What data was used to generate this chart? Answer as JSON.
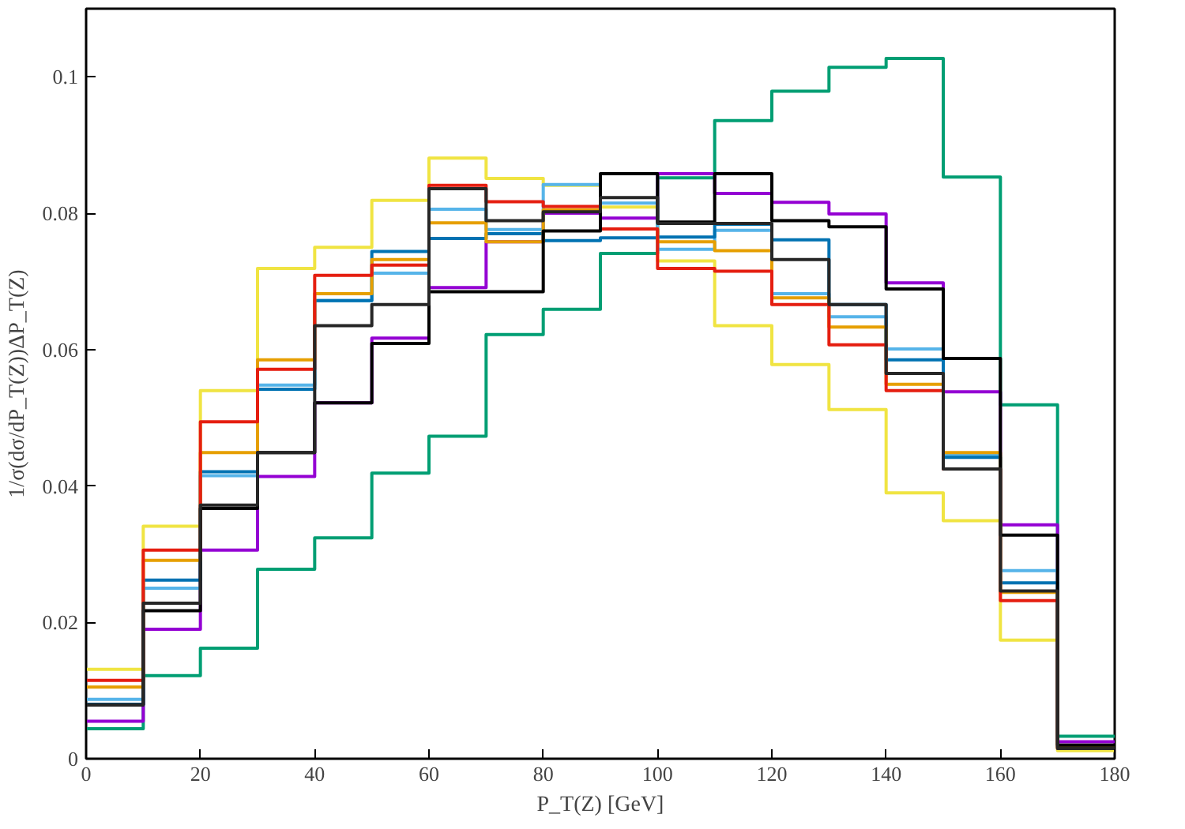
{
  "chart_data": {
    "type": "histogram",
    "xlabel": "P_T(Z) [GeV]",
    "ylabel": "1/σ(dσ/dP_T(Z))ΔP_T(Z)",
    "bins": [
      0,
      10,
      20,
      30,
      40,
      50,
      60,
      70,
      80,
      90,
      100,
      110,
      120,
      130,
      140,
      150,
      160,
      170,
      180
    ],
    "xlim": [
      0,
      180
    ],
    "xticks": [
      0,
      20,
      40,
      60,
      80,
      100,
      120,
      140,
      160,
      180
    ],
    "ylim": [
      0,
      0.11
    ],
    "yticks": [
      0,
      0.02,
      0.04,
      0.06,
      0.08,
      0.1
    ],
    "grid": false,
    "line_style": "solid",
    "series": [
      {
        "color": "#f0e442",
        "values": [
          0.0131,
          0.0341,
          0.054,
          0.0719,
          0.075,
          0.0819,
          0.0881,
          0.0851,
          0.0841,
          0.0809,
          0.073,
          0.0635,
          0.0578,
          0.0512,
          0.039,
          0.0349,
          0.0174,
          0.0012
        ]
      },
      {
        "color": "#009e73",
        "values": [
          0.0044,
          0.0122,
          0.0162,
          0.0278,
          0.0324,
          0.0419,
          0.0473,
          0.0622,
          0.0659,
          0.0741,
          0.0852,
          0.0936,
          0.0979,
          0.1014,
          0.1027,
          0.0853,
          0.0519,
          0.0033
        ]
      },
      {
        "color": "#9400d3",
        "values": [
          0.0055,
          0.019,
          0.0306,
          0.0414,
          0.0522,
          0.0617,
          0.0691,
          0.0758,
          0.08,
          0.0793,
          0.0858,
          0.0829,
          0.0816,
          0.0799,
          0.0698,
          0.0538,
          0.0343,
          0.0025
        ]
      },
      {
        "color": "#56b4e9",
        "values": [
          0.0087,
          0.025,
          0.0415,
          0.0548,
          0.0672,
          0.0712,
          0.0806,
          0.0776,
          0.0842,
          0.0815,
          0.0747,
          0.0775,
          0.0682,
          0.0648,
          0.0601,
          0.0445,
          0.0276,
          0.0018
        ]
      },
      {
        "color": "#0072b2",
        "values": [
          0.008,
          0.0262,
          0.0421,
          0.0542,
          0.0672,
          0.0744,
          0.0763,
          0.077,
          0.076,
          0.0764,
          0.0765,
          0.0784,
          0.0761,
          0.0666,
          0.0585,
          0.0442,
          0.0258,
          0.0017
        ]
      },
      {
        "color": "#e69f00",
        "values": [
          0.0105,
          0.0291,
          0.0449,
          0.0585,
          0.0682,
          0.0732,
          0.0786,
          0.0758,
          0.0805,
          0.0777,
          0.0758,
          0.0745,
          0.0676,
          0.0633,
          0.0549,
          0.0449,
          0.0244,
          0.0016
        ]
      },
      {
        "color": "#e51e10",
        "values": [
          0.0115,
          0.0306,
          0.0494,
          0.0571,
          0.0709,
          0.0724,
          0.0841,
          0.0817,
          0.081,
          0.0777,
          0.0719,
          0.0715,
          0.0666,
          0.0607,
          0.054,
          0.0425,
          0.0232,
          0.0015
        ]
      },
      {
        "color": "#000000",
        "values": [
          0.0079,
          0.0217,
          0.0367,
          0.0449,
          0.0522,
          0.0609,
          0.0685,
          0.0685,
          0.0774,
          0.0858,
          0.0787,
          0.0858,
          0.0789,
          0.078,
          0.0689,
          0.0587,
          0.0328,
          0.002
        ]
      },
      {
        "color": "#262626",
        "values": [
          0.0079,
          0.0228,
          0.0372,
          0.0449,
          0.0635,
          0.0666,
          0.0836,
          0.0789,
          0.0802,
          0.0823,
          0.0785,
          0.0785,
          0.0732,
          0.0666,
          0.0565,
          0.0425,
          0.0246,
          0.0015
        ]
      }
    ]
  }
}
